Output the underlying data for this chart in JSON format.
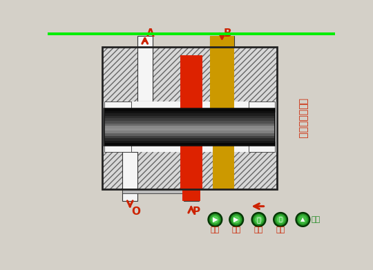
{
  "bg_color": "#d4d0c8",
  "green_bar_color": "#00ee00",
  "title_text": "三位四通换向阀",
  "title_color": "#cc2200",
  "red_part_color": "#dd2200",
  "gold_part_color": "#cc9900",
  "arrow_color": "#cc2200",
  "hatch_fg": "#666666",
  "hatch_bg": "#d8d8d8",
  "spool_colors": [
    "#080808",
    "#111111",
    "#1e1e1e",
    "#2e2e2e",
    "#3e3e3e",
    "#505050",
    "#686868",
    "#888888",
    "#909090",
    "#808080",
    "#606060",
    "#404040",
    "#282828",
    "#181818",
    "#080808"
  ],
  "white_port": "#f5f5f5",
  "body_edge": "#222222",
  "port_edge": "#333333",
  "labels_bottom": [
    "左位",
    "中位",
    "右位",
    "停止"
  ],
  "label_return": "返回",
  "button_color_dark": "#1a6e1a",
  "button_color_mid": "#2ea82e",
  "button_color_light": "#55cc55",
  "button_green": "#228B22"
}
